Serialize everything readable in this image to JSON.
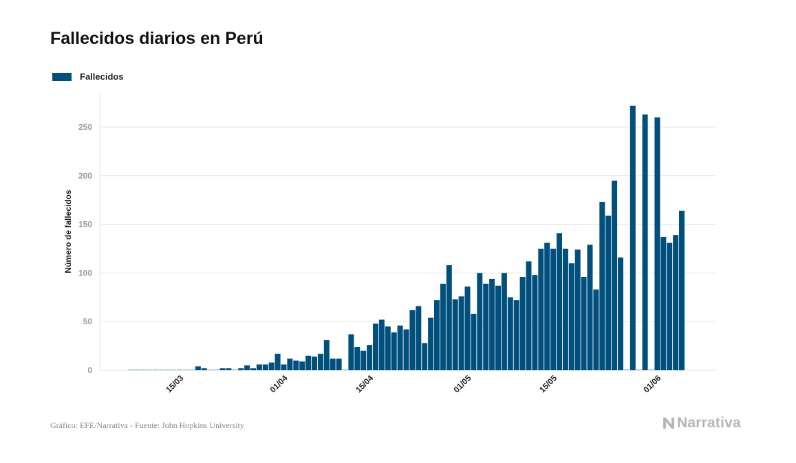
{
  "title": "Fallecidos diarios en Perú",
  "footer": {
    "source": "Gráfico: EFE/Narrativa - Fuente: John Hopkins University",
    "brand": "Narrativa"
  },
  "colors": {
    "bar": "#004f7c",
    "grid": "#e6e6e6",
    "tick_text": "#999999",
    "axis_text": "#222222"
  },
  "chart_data": {
    "type": "bar",
    "ylabel": "Número de fallecidos",
    "ylim": [
      0,
      280
    ],
    "y_ticks": [
      0,
      50,
      100,
      150,
      200,
      250
    ],
    "legend": {
      "entries": [
        "Fallecidos"
      ],
      "placement": "top-left"
    },
    "grid": true,
    "x_start": "2020-03-07",
    "x_ticks": [
      {
        "label": "15/03",
        "date": "2020-03-15"
      },
      {
        "label": "01/04",
        "date": "2020-04-01"
      },
      {
        "label": "15/04",
        "date": "2020-04-15"
      },
      {
        "label": "01/05",
        "date": "2020-05-01"
      },
      {
        "label": "15/05",
        "date": "2020-05-15"
      },
      {
        "label": "01/06",
        "date": "2020-06-01"
      }
    ],
    "series": [
      {
        "name": "Fallecidos",
        "values": [
          0,
          0,
          0,
          0,
          0,
          0,
          0,
          0,
          0,
          0,
          0,
          4,
          2,
          0,
          0,
          2,
          2,
          0,
          2,
          5,
          2,
          6,
          6,
          8,
          17,
          6,
          12,
          10,
          9,
          15,
          14,
          17,
          31,
          12,
          12,
          0,
          37,
          24,
          20,
          26,
          48,
          52,
          45,
          39,
          46,
          42,
          62,
          66,
          28,
          54,
          72,
          89,
          108,
          73,
          76,
          86,
          58,
          100,
          89,
          94,
          87,
          100,
          75,
          72,
          96,
          112,
          98,
          125,
          131,
          125,
          141,
          125,
          110,
          124,
          96,
          129,
          83,
          173,
          159,
          195,
          116,
          0,
          272,
          0,
          263,
          0,
          260,
          137,
          131,
          139,
          164
        ]
      }
    ]
  }
}
